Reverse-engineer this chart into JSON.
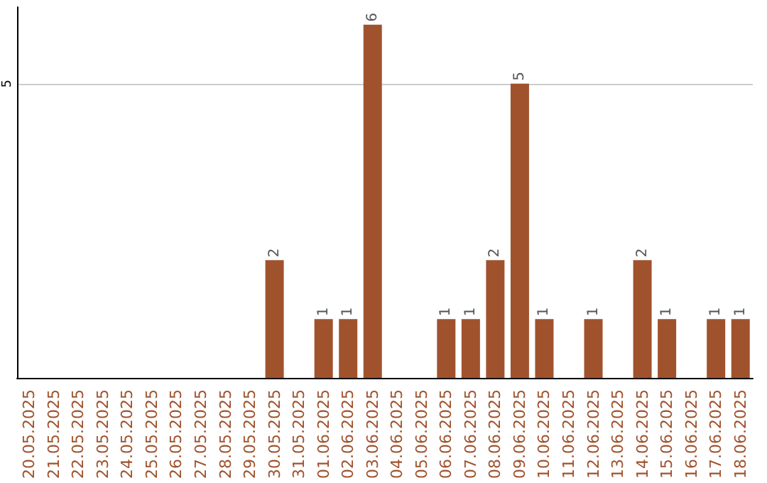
{
  "chart_data": {
    "type": "bar",
    "categories": [
      "20.05.2025",
      "21.05.2025",
      "22.05.2025",
      "23.05.2025",
      "24.05.2025",
      "25.05.2025",
      "26.05.2025",
      "27.05.2025",
      "28.05.2025",
      "29.05.2025",
      "30.05.2025",
      "31.05.2025",
      "01.06.2025",
      "02.06.2025",
      "03.06.2025",
      "04.06.2025",
      "05.06.2025",
      "06.06.2025",
      "07.06.2025",
      "08.06.2025",
      "09.06.2025",
      "10.06.2025",
      "11.06.2025",
      "12.06.2025",
      "13.06.2025",
      "14.06.2025",
      "15.06.2025",
      "16.06.2025",
      "17.06.2025",
      "18.06.2025"
    ],
    "values": [
      0,
      0,
      0,
      0,
      0,
      0,
      0,
      0,
      0,
      0,
      2,
      0,
      1,
      1,
      6,
      0,
      0,
      1,
      1,
      2,
      5,
      1,
      0,
      1,
      0,
      2,
      1,
      0,
      1,
      1
    ],
    "color": "#a0522d",
    "value_labels": [
      null,
      null,
      null,
      null,
      null,
      null,
      null,
      null,
      null,
      null,
      "2",
      null,
      "1",
      "1",
      "6",
      null,
      null,
      "1",
      "1",
      "2",
      "5",
      "1",
      null,
      "1",
      null,
      "2",
      "1",
      null,
      "1",
      "1"
    ],
    "ylim": [
      0,
      6.3
    ],
    "yticks": [
      5
    ],
    "grid": "y"
  }
}
